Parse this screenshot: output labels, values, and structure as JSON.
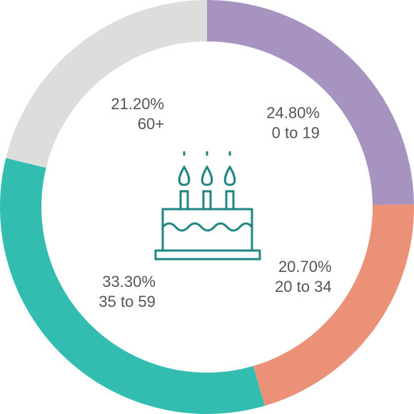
{
  "chart_data": {
    "type": "pie",
    "donut": true,
    "categories": [
      "0 to 19",
      "20 to 34",
      "35 to 59",
      "60+"
    ],
    "values": [
      24.8,
      20.7,
      33.3,
      21.2
    ],
    "value_labels": [
      "24.80%",
      "20.70%",
      "33.30%",
      "21.20%"
    ],
    "colors": [
      "#a693c0",
      "#eb9177",
      "#33bdb0",
      "#dddedb"
    ]
  }
}
